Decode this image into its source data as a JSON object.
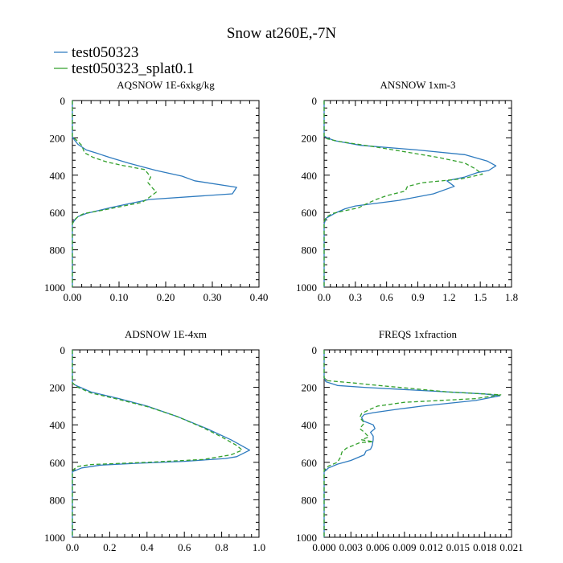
{
  "figure_title": "Snow at260E,-7N",
  "colors": {
    "series1": "#2e7bbf",
    "series2": "#33a02c"
  },
  "legend": [
    "test050323",
    "test050323_splat0.1"
  ],
  "chart_data": [
    {
      "type": "line",
      "title": "AQSNOW  1E-6xkg/kg",
      "xlim": [
        0,
        0.4
      ],
      "xticks": [
        0,
        0.1,
        0.2,
        0.3,
        0.4
      ],
      "xtick_labels": [
        "0.00",
        "0.10",
        "0.20",
        "0.30",
        "0.40"
      ],
      "ylim": [
        1000,
        0
      ],
      "yticks": [
        0,
        200,
        400,
        600,
        800,
        1000
      ],
      "ytick_labels": [
        "0",
        "200",
        "400",
        "600",
        "800",
        "1000"
      ],
      "series": [
        {
          "name": "test050323",
          "points": [
            [
              0,
              0
            ],
            [
              0,
              195
            ],
            [
              0.004,
              210
            ],
            [
              0.012,
              235
            ],
            [
              0.03,
              265
            ],
            [
              0.05,
              280
            ],
            [
              0.08,
              305
            ],
            [
              0.12,
              335
            ],
            [
              0.15,
              355
            ],
            [
              0.18,
              375
            ],
            [
              0.235,
              405
            ],
            [
              0.262,
              430
            ],
            [
              0.352,
              465
            ],
            [
              0.343,
              500
            ],
            [
              0.165,
              530
            ],
            [
              0.085,
              572
            ],
            [
              0.03,
              605
            ],
            [
              0.012,
              622
            ],
            [
              0.005,
              640
            ],
            [
              0,
              660
            ],
            [
              0,
              1000
            ]
          ]
        },
        {
          "name": "test050323_splat0.1",
          "points": [
            [
              0,
              0
            ],
            [
              0,
              195
            ],
            [
              0.008,
              210
            ],
            [
              0.02,
              240
            ],
            [
              0.026,
              280
            ],
            [
              0.045,
              305
            ],
            [
              0.075,
              330
            ],
            [
              0.112,
              350
            ],
            [
              0.155,
              370
            ],
            [
              0.168,
              410
            ],
            [
              0.162,
              440
            ],
            [
              0.172,
              470
            ],
            [
              0.18,
              490
            ],
            [
              0.17,
              510
            ],
            [
              0.15,
              545
            ],
            [
              0.11,
              565
            ],
            [
              0.06,
              590
            ],
            [
              0.025,
              605
            ],
            [
              0.012,
              622
            ],
            [
              0.004,
              640
            ],
            [
              0,
              660
            ],
            [
              0,
              1000
            ]
          ]
        }
      ]
    },
    {
      "type": "line",
      "title": "ANSNOW  1xm-3",
      "xlim": [
        0,
        1.8
      ],
      "xticks": [
        0,
        0.3,
        0.6,
        0.9,
        1.2,
        1.5,
        1.8
      ],
      "xtick_labels": [
        "0.0",
        "0.3",
        "0.6",
        "0.9",
        "1.2",
        "1.5",
        "1.8"
      ],
      "ylim": [
        1000,
        0
      ],
      "yticks": [
        0,
        200,
        400,
        600,
        800,
        1000
      ],
      "ytick_labels": [
        "0",
        "200",
        "400",
        "600",
        "800",
        "1000"
      ],
      "series": [
        {
          "name": "test050323",
          "points": [
            [
              0,
              0
            ],
            [
              0,
              190
            ],
            [
              0.03,
              200
            ],
            [
              0.1,
              215
            ],
            [
              0.35,
              240
            ],
            [
              0.9,
              265
            ],
            [
              1.35,
              290
            ],
            [
              1.57,
              325
            ],
            [
              1.65,
              350
            ],
            [
              1.58,
              375
            ],
            [
              1.48,
              385
            ],
            [
              1.35,
              410
            ],
            [
              1.18,
              430
            ],
            [
              1.25,
              460
            ],
            [
              1.05,
              500
            ],
            [
              0.72,
              535
            ],
            [
              0.3,
              565
            ],
            [
              0.2,
              580
            ],
            [
              0.1,
              605
            ],
            [
              0.02,
              630
            ],
            [
              0,
              660
            ],
            [
              0,
              1000
            ]
          ]
        },
        {
          "name": "test050323_splat0.1",
          "points": [
            [
              0,
              0
            ],
            [
              0,
              195
            ],
            [
              0.03,
              205
            ],
            [
              0.15,
              220
            ],
            [
              0.45,
              245
            ],
            [
              0.78,
              275
            ],
            [
              1.1,
              305
            ],
            [
              1.35,
              335
            ],
            [
              1.45,
              365
            ],
            [
              1.52,
              395
            ],
            [
              1.32,
              420
            ],
            [
              0.95,
              440
            ],
            [
              0.8,
              460
            ],
            [
              0.78,
              485
            ],
            [
              0.6,
              510
            ],
            [
              0.5,
              530
            ],
            [
              0.4,
              555
            ],
            [
              0.33,
              575
            ],
            [
              0.2,
              590
            ],
            [
              0.08,
              605
            ],
            [
              0.02,
              625
            ],
            [
              0,
              650
            ],
            [
              0,
              1000
            ]
          ]
        }
      ]
    },
    {
      "type": "line",
      "title": "ADSNOW  1E-4xm",
      "xlim": [
        0,
        1.0
      ],
      "xticks": [
        0,
        0.2,
        0.4,
        0.6,
        0.8,
        1.0
      ],
      "xtick_labels": [
        "0.0",
        "0.2",
        "0.4",
        "0.6",
        "0.8",
        "1.0"
      ],
      "ylim": [
        1000,
        0
      ],
      "yticks": [
        0,
        200,
        400,
        600,
        800,
        1000
      ],
      "ytick_labels": [
        "0",
        "200",
        "400",
        "600",
        "800",
        "1000"
      ],
      "series": [
        {
          "name": "test050323",
          "points": [
            [
              0,
              0
            ],
            [
              0,
              175
            ],
            [
              0.01,
              185
            ],
            [
              0.03,
              195
            ],
            [
              0.1,
              225
            ],
            [
              0.25,
              260
            ],
            [
              0.4,
              300
            ],
            [
              0.56,
              355
            ],
            [
              0.72,
              420
            ],
            [
              0.85,
              480
            ],
            [
              0.95,
              535
            ],
            [
              0.88,
              570
            ],
            [
              0.82,
              580
            ],
            [
              0.6,
              595
            ],
            [
              0.35,
              605
            ],
            [
              0.15,
              615
            ],
            [
              0.05,
              630
            ],
            [
              0,
              650
            ],
            [
              0,
              1000
            ]
          ]
        },
        {
          "name": "test050323_splat0.1",
          "points": [
            [
              0,
              0
            ],
            [
              0,
              175
            ],
            [
              0.01,
              185
            ],
            [
              0.03,
              200
            ],
            [
              0.1,
              230
            ],
            [
              0.25,
              265
            ],
            [
              0.41,
              305
            ],
            [
              0.56,
              355
            ],
            [
              0.7,
              415
            ],
            [
              0.8,
              465
            ],
            [
              0.88,
              510
            ],
            [
              0.91,
              535
            ],
            [
              0.85,
              560
            ],
            [
              0.7,
              585
            ],
            [
              0.4,
              600
            ],
            [
              0.1,
              612
            ],
            [
              0.03,
              622
            ],
            [
              0.01,
              635
            ],
            [
              0,
              650
            ],
            [
              0,
              1000
            ]
          ]
        }
      ]
    },
    {
      "type": "line",
      "title": "FREQS  1xfraction",
      "xlim": [
        0,
        0.021
      ],
      "xticks": [
        0,
        0.003,
        0.006,
        0.009,
        0.012,
        0.015,
        0.018,
        0.021
      ],
      "xtick_labels": [
        "0.000",
        "0.003",
        "0.006",
        "0.009",
        "0.012",
        "0.015",
        "0.018",
        "0.021"
      ],
      "ylim": [
        1000,
        0
      ],
      "yticks": [
        0,
        200,
        400,
        600,
        800,
        1000
      ],
      "ytick_labels": [
        "0",
        "200",
        "400",
        "600",
        "800",
        "1000"
      ],
      "series": [
        {
          "name": "test050323",
          "points": [
            [
              0,
              0
            ],
            [
              0,
              150
            ],
            [
              0.0002,
              170
            ],
            [
              0.0015,
              190
            ],
            [
              0.0045,
              200
            ],
            [
              0.018,
              235
            ],
            [
              0.0197,
              245
            ],
            [
              0.017,
              270
            ],
            [
              0.011,
              300
            ],
            [
              0.0085,
              315
            ],
            [
              0.0055,
              335
            ],
            [
              0.0045,
              345
            ],
            [
              0.0042,
              360
            ],
            [
              0.0044,
              380
            ],
            [
              0.0055,
              400
            ],
            [
              0.0057,
              420
            ],
            [
              0.0052,
              440
            ],
            [
              0.0055,
              460
            ],
            [
              0.0055,
              480
            ],
            [
              0.0054,
              510
            ],
            [
              0.0052,
              530
            ],
            [
              0.0047,
              540
            ],
            [
              0.0045,
              560
            ],
            [
              0.003,
              590
            ],
            [
              0.0015,
              610
            ],
            [
              0.0005,
              630
            ],
            [
              0,
              650
            ],
            [
              0,
              1000
            ]
          ]
        },
        {
          "name": "test050323_splat0.1",
          "points": [
            [
              0,
              0
            ],
            [
              0,
              150
            ],
            [
              0.0004,
              165
            ],
            [
              0.003,
              175
            ],
            [
              0.005,
              185
            ],
            [
              0.014,
              225
            ],
            [
              0.0198,
              240
            ],
            [
              0.017,
              260
            ],
            [
              0.009,
              280
            ],
            [
              0.006,
              300
            ],
            [
              0.005,
              320
            ],
            [
              0.0042,
              340
            ],
            [
              0.004,
              360
            ],
            [
              0.0045,
              390
            ],
            [
              0.004,
              420
            ],
            [
              0.0045,
              440
            ],
            [
              0.005,
              465
            ],
            [
              0.0042,
              480
            ],
            [
              0.0055,
              490
            ],
            [
              0.004,
              495
            ],
            [
              0.0035,
              505
            ],
            [
              0.0025,
              525
            ],
            [
              0.002,
              545
            ],
            [
              0.0018,
              575
            ],
            [
              0.0015,
              600
            ],
            [
              0.0005,
              620
            ],
            [
              0,
              640
            ],
            [
              0,
              1000
            ]
          ]
        }
      ]
    }
  ]
}
